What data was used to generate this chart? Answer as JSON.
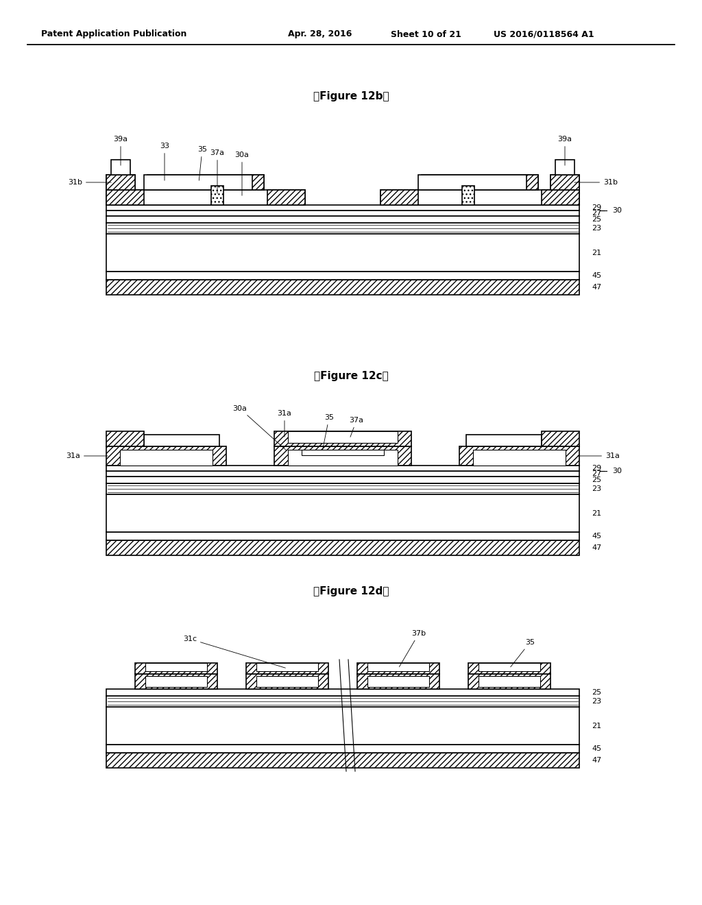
{
  "header_left": "Patent Application Publication",
  "header_mid": "Apr. 28, 2016  Sheet 10 of 21",
  "header_right": "US 2016/0118564 A1",
  "fig12b_title": "【Figure 12b】",
  "fig12c_title": "【Figure 12c】",
  "fig12d_title": "【Figure 12d】",
  "bg": "#ffffff",
  "black": "#000000",
  "white": "#ffffff",
  "hatch_diag": "////",
  "hatch_dot": "....",
  "lw_main": 1.2,
  "lw_thin": 0.7,
  "fontsize_header": 9,
  "fontsize_title": 11,
  "fontsize_label": 8
}
